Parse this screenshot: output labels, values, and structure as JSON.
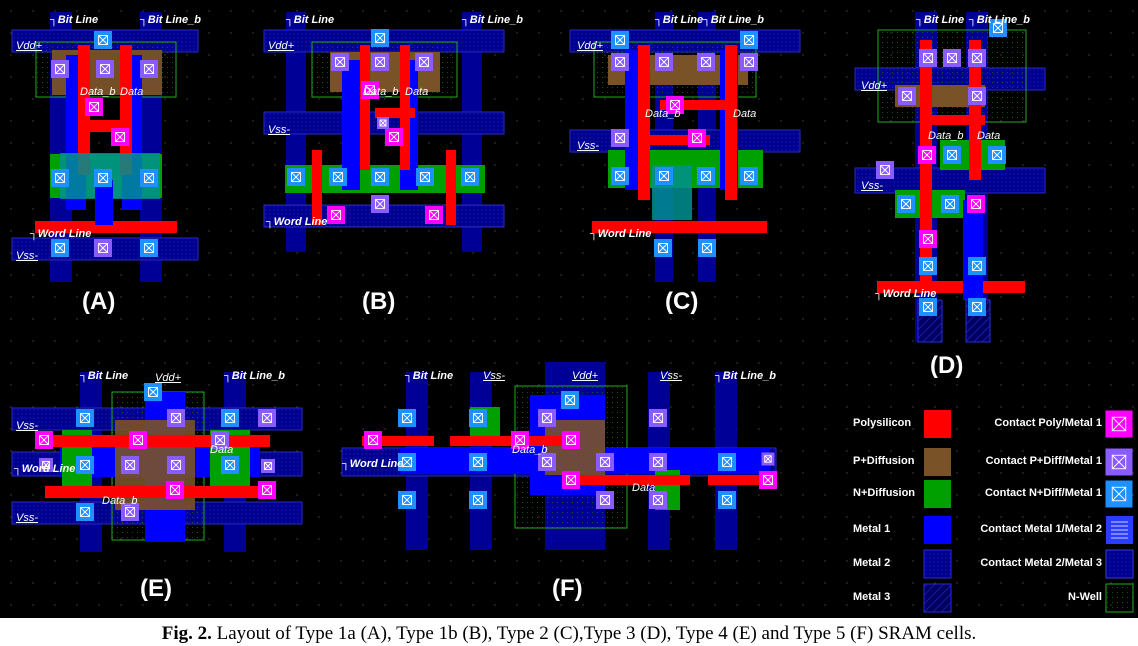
{
  "figure": {
    "panels": [
      "(A)",
      "(B)",
      "(C)",
      "(D)",
      "(E)",
      "(F)"
    ],
    "signals": {
      "bit_line": "Bit Line",
      "bit_line_b": "Bit Line_b",
      "vdd": "Vdd+",
      "vss": "Vss-",
      "word_line": "Word Line",
      "data": "Data",
      "data_b": "Data_b"
    }
  },
  "legend": [
    {
      "label": "Polysilicon",
      "color": "#ff0000"
    },
    {
      "label": "P+Diffusion",
      "color": "#7a5228"
    },
    {
      "label": "N+Diffusion",
      "color": "#00a000"
    },
    {
      "label": "Metal 1",
      "color": "#0000ff"
    },
    {
      "label": "Metal 2",
      "color": "#000096"
    },
    {
      "label": "Metal 3",
      "color": "#00007a"
    },
    {
      "label": "Contact Poly/Metal 1",
      "color": "#ff00ff"
    },
    {
      "label": "Contact P+Diff/Metal 1",
      "color": "#8a5cff"
    },
    {
      "label": "Contact N+Diff/Metal 1",
      "color": "#1e90ff"
    },
    {
      "label": "Contact Metal 1/Metal 2",
      "color": "#3a5cff"
    },
    {
      "label": "Contact Metal 2/Metal 3",
      "color": "#000096"
    },
    {
      "label": "N-Well",
      "color": "#00a000"
    }
  ],
  "caption": {
    "fig_label": "Fig. 2.",
    "text": " Layout of Type 1a (A), Type 1b (B), Type 2 (C),Type 3 (D), Type 4 (E) and Type 5 (F) SRAM cells."
  }
}
